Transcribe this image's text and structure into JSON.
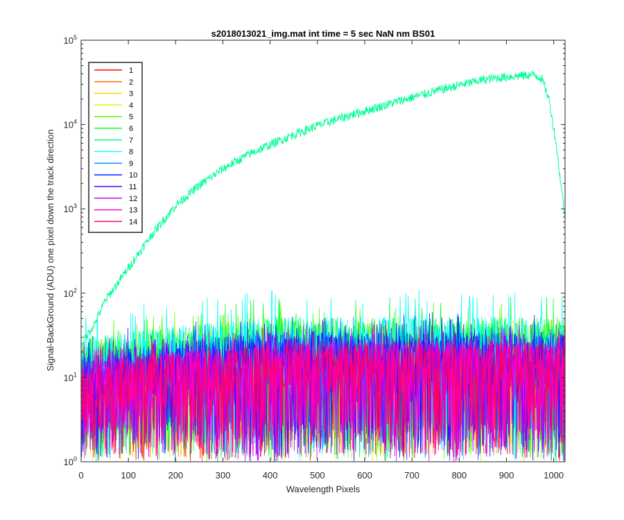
{
  "chart_data": {
    "type": "line",
    "title": "s2018013021_img.mat int time = 5 sec  NaN nm BS01",
    "xlabel": "Wavelength Pixels",
    "ylabel": "Signal-BackGround (ADU) one pixel down the track direction",
    "xlim": [
      0,
      1024
    ],
    "ylim": [
      1,
      100000
    ],
    "yscale": "log",
    "x_ticks": [
      "0",
      "100",
      "200",
      "300",
      "400",
      "500",
      "600",
      "700",
      "800",
      "900",
      "1000"
    ],
    "y_ticks": [
      {
        "base": "10",
        "exp": "0"
      },
      {
        "base": "10",
        "exp": "1"
      },
      {
        "base": "10",
        "exp": "2"
      },
      {
        "base": "10",
        "exp": "3"
      },
      {
        "base": "10",
        "exp": "4"
      },
      {
        "base": "10",
        "exp": "5"
      }
    ],
    "legend_position": "top-left",
    "grid": false,
    "series": [
      {
        "name": "1",
        "color": "#ff0000",
        "level": 15,
        "peak": 45
      },
      {
        "name": "2",
        "color": "#ff6a00",
        "level": 15,
        "peak": 45
      },
      {
        "name": "3",
        "color": "#ffd400",
        "level": 18,
        "peak": 50
      },
      {
        "name": "4",
        "color": "#c0ff00",
        "level": 20,
        "peak": 55
      },
      {
        "name": "5",
        "color": "#55ff00",
        "level": 25,
        "peak": 80
      },
      {
        "name": "6",
        "color": "#00ff2a",
        "level": 30,
        "peak": 90
      },
      {
        "name": "7",
        "color": "#00ff95",
        "level": null,
        "peak": 40000,
        "profile_x": [
          0,
          10,
          30,
          50,
          100,
          150,
          200,
          250,
          300,
          350,
          400,
          450,
          500,
          550,
          600,
          650,
          700,
          750,
          800,
          850,
          900,
          940,
          960,
          975,
          990,
          1005,
          1015,
          1024
        ],
        "profile_y": [
          25,
          30,
          45,
          80,
          200,
          500,
          1100,
          1900,
          3000,
          4300,
          5800,
          7600,
          9700,
          12000,
          14500,
          17500,
          21000,
          25000,
          29500,
          34000,
          37000,
          38500,
          39000,
          35000,
          20000,
          6000,
          2000,
          800
        ]
      },
      {
        "name": "8",
        "color": "#00ffff",
        "level": 30,
        "peak": 110
      },
      {
        "name": "9",
        "color": "#0095ff",
        "level": 20,
        "peak": 55
      },
      {
        "name": "10",
        "color": "#002aff",
        "level": 20,
        "peak": 60
      },
      {
        "name": "11",
        "color": "#5500ff",
        "level": 18,
        "peak": 50
      },
      {
        "name": "12",
        "color": "#bf00ff",
        "level": 15,
        "peak": 45
      },
      {
        "name": "13",
        "color": "#ff00d4",
        "level": 15,
        "peak": 45
      },
      {
        "name": "14",
        "color": "#ff0066",
        "level": 15,
        "peak": 40
      }
    ]
  }
}
